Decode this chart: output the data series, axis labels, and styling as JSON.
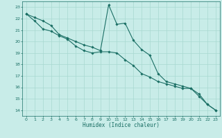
{
  "xlabel": "Humidex (Indice chaleur)",
  "background_color": "#c8ece8",
  "grid_color": "#a8d8d0",
  "line_color": "#1a6e64",
  "xlim": [
    -0.5,
    23.5
  ],
  "ylim": [
    13.5,
    23.5
  ],
  "xticks": [
    0,
    1,
    2,
    3,
    4,
    5,
    6,
    7,
    8,
    9,
    10,
    11,
    12,
    13,
    14,
    15,
    16,
    17,
    18,
    19,
    20,
    21,
    22,
    23
  ],
  "yticks": [
    14,
    15,
    16,
    17,
    18,
    19,
    20,
    21,
    22,
    23
  ],
  "line1_x": [
    0,
    1,
    2,
    3,
    4,
    5,
    6,
    7,
    8,
    9,
    10,
    11,
    12,
    13,
    14,
    15,
    16,
    17,
    18,
    19,
    20,
    21,
    22,
    23
  ],
  "line1_y": [
    22.4,
    22.1,
    21.8,
    21.4,
    20.6,
    20.3,
    20.0,
    19.7,
    19.5,
    19.2,
    23.2,
    21.5,
    21.6,
    20.1,
    19.3,
    18.8,
    17.2,
    16.5,
    16.3,
    16.1,
    15.9,
    15.2,
    14.5,
    14.0
  ],
  "line2_x": [
    0,
    1,
    2,
    3,
    4,
    5,
    6,
    7,
    8,
    9,
    10,
    11,
    12,
    13,
    14,
    15,
    16,
    17,
    18,
    19,
    20,
    21,
    22,
    23
  ],
  "line2_y": [
    22.4,
    21.8,
    21.1,
    20.9,
    20.5,
    20.2,
    19.6,
    19.2,
    19.0,
    19.1,
    19.1,
    19.0,
    18.4,
    17.9,
    17.2,
    16.9,
    16.5,
    16.3,
    16.1,
    15.9,
    15.9,
    15.4,
    14.5,
    14.0
  ]
}
